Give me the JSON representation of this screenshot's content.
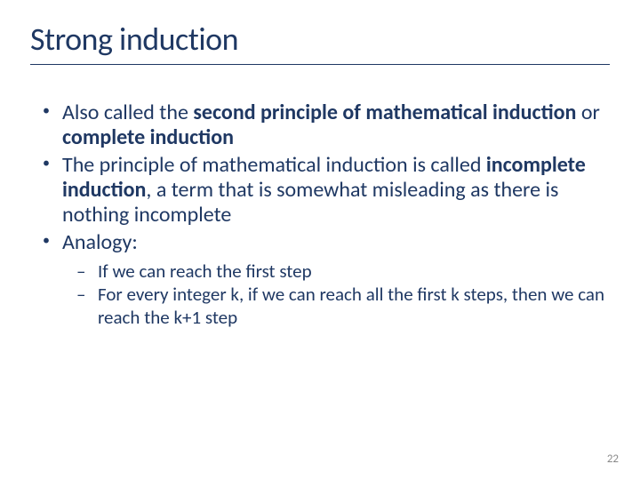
{
  "colors": {
    "title": "#1f3863",
    "underline": "#1f3863",
    "body_text": "#1f3863",
    "page_number": "#8a8a8a",
    "background": "#ffffff"
  },
  "title": "Strong induction",
  "bullets": [
    {
      "runs": [
        {
          "t": "Also called the ",
          "b": false
        },
        {
          "t": "second principle of mathematical induction",
          "b": true
        },
        {
          "t": " or ",
          "b": false
        },
        {
          "t": "complete induction",
          "b": true
        }
      ]
    },
    {
      "runs": [
        {
          "t": "The principle of mathematical induction is called ",
          "b": false
        },
        {
          "t": "incomplete induction",
          "b": true
        },
        {
          "t": ", a term that is somewhat misleading as there is nothing incomplete",
          "b": false
        }
      ]
    },
    {
      "runs": [
        {
          "t": "Analogy:",
          "b": false
        }
      ],
      "sub": [
        {
          "t": "If we can reach the first step"
        },
        {
          "t": "For every integer k, if we can reach all the first k steps, then we can reach the k+1 step"
        }
      ]
    }
  ],
  "page_number": "22"
}
